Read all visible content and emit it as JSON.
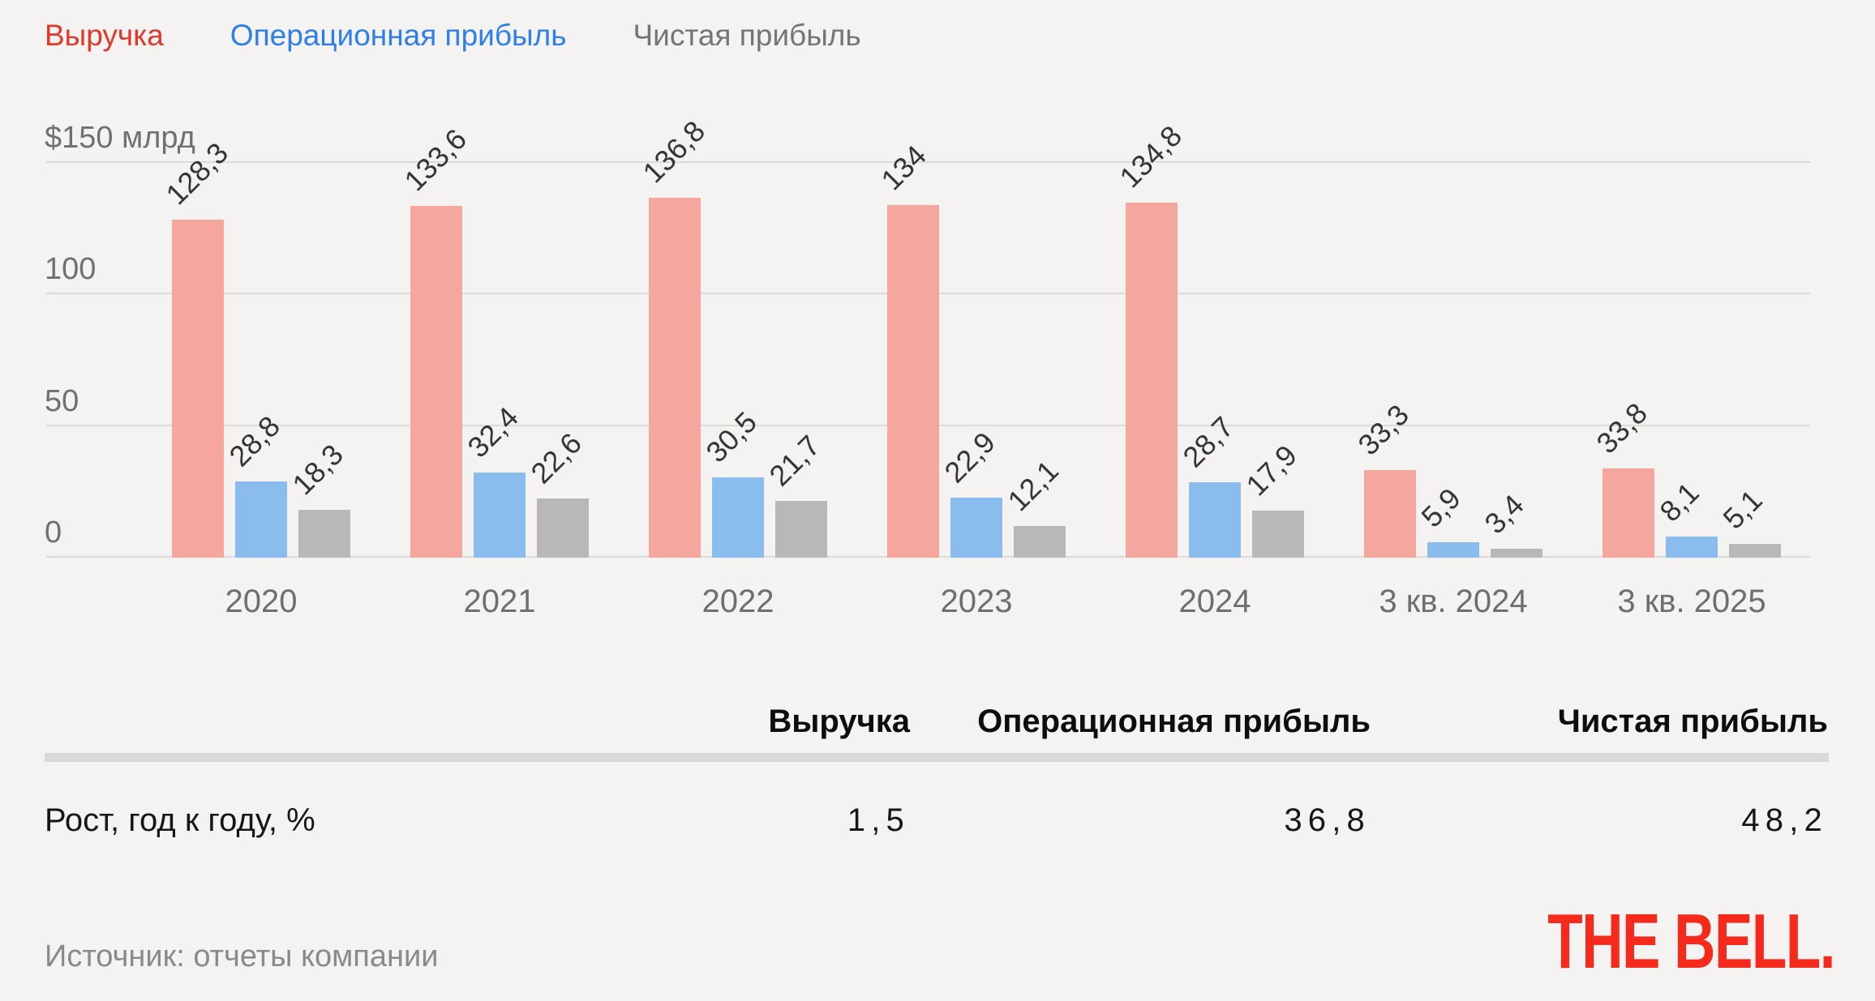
{
  "legend": {
    "items": [
      {
        "key": "revenue",
        "label": "Выручка",
        "color": "#e0392c"
      },
      {
        "key": "operating-profit",
        "label": "Операционная прибыль",
        "color": "#2e7fe9"
      },
      {
        "key": "net-profit",
        "label": "Чистая прибыль",
        "color": "#757575"
      }
    ]
  },
  "chart_data": {
    "type": "bar",
    "categories": [
      "2020",
      "2021",
      "2022",
      "2023",
      "2024",
      "3 кв. 2024",
      "3 кв. 2025"
    ],
    "series": [
      {
        "key": "revenue",
        "name": "Выручка",
        "color": "#f4a69f",
        "values": [
          128.3,
          133.6,
          136.8,
          134,
          134.8,
          33.3,
          33.8
        ]
      },
      {
        "key": "operating-profit",
        "name": "Операционная прибыль",
        "color": "#8bbcee",
        "values": [
          28.8,
          32.4,
          30.5,
          22.9,
          28.7,
          5.9,
          8.1
        ]
      },
      {
        "key": "net-profit",
        "name": "Чистая прибыль",
        "color": "#b9b8b6",
        "values": [
          18.3,
          22.6,
          21.7,
          12.1,
          17.9,
          3.4,
          5.1
        ]
      }
    ],
    "y_axis": {
      "ticks": [
        {
          "label": "$150 млрд",
          "value": 150
        },
        {
          "label": "100",
          "value": 100
        },
        {
          "label": "50",
          "value": 50
        },
        {
          "label": "0",
          "value": 0
        }
      ]
    },
    "ylim": [
      0,
      150
    ],
    "grid": true,
    "legend_position": "top",
    "decimal_separator": ",",
    "title": ""
  },
  "table": {
    "headers": [
      "Выручка",
      "Операционная прибыль",
      "Чистая прибыль"
    ],
    "rows": [
      {
        "label": "Рост, год к году, %",
        "values": [
          "1,5",
          "36,8",
          "48,2"
        ]
      }
    ]
  },
  "footer": {
    "source": "Источник: отчеты компании",
    "logo": "THE BELL.",
    "logo_color": "#f5291c"
  }
}
